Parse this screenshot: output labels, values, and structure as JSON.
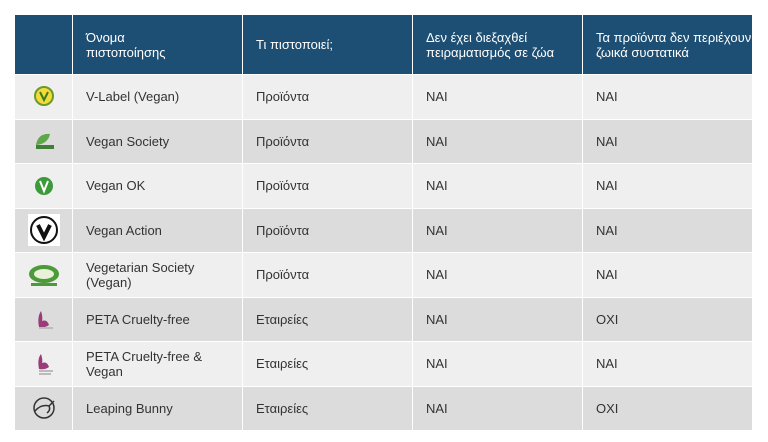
{
  "header": [
    [
      "Όνομα",
      "πιστοποίησης"
    ],
    [
      "Τι πιστοποιεί;"
    ],
    [
      "Δεν έχει διεξαχθεί",
      "πειραματισμός σε ζώα"
    ],
    [
      "Τα προϊόντα δεν περιέχουν",
      "ζωικά συστατικά"
    ]
  ],
  "rows": [
    [
      "V-Label (Vegan)",
      "Προϊόντα",
      "ΝΑΙ",
      "ΝΑΙ"
    ],
    [
      "Vegan Society",
      "Προϊόντα",
      "ΝΑΙ",
      "ΝΑΙ"
    ],
    [
      "Vegan OK",
      "Προϊόντα",
      "ΝΑΙ",
      "ΝΑΙ"
    ],
    [
      "Vegan Action",
      "Προϊόντα",
      "ΝΑΙ",
      "ΝΑΙ"
    ],
    [
      "Vegetarian Society (Vegan)",
      "Προϊόντα",
      "ΝΑΙ",
      "ΝΑΙ"
    ],
    [
      "PETA Cruelty-free",
      "Εταιρείες",
      "ΝΑΙ",
      "ΟΧΙ"
    ],
    [
      "PETA Cruelty-free & Vegan",
      "Εταιρείες",
      "ΝΑΙ",
      "ΝΑΙ"
    ],
    [
      "Leaping Bunny",
      "Εταιρείες",
      "ΝΑΙ",
      "ΟΧΙ"
    ]
  ]
}
